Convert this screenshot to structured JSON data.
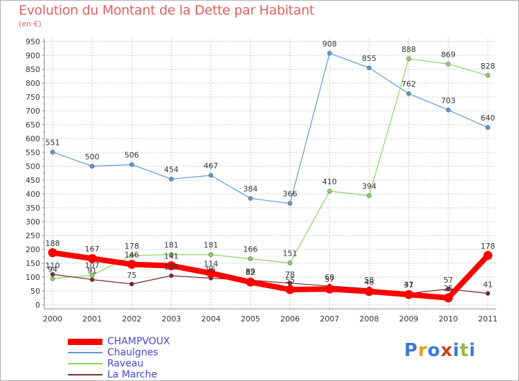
{
  "chart_data": {
    "type": "line",
    "title": "Evolution du Montant de la Dette par Habitant",
    "subtitle": "(en €)",
    "x": [
      "2000",
      "2001",
      "2002",
      "2003",
      "2004",
      "2005",
      "2006",
      "2007",
      "2008",
      "2009",
      "2010",
      "2011"
    ],
    "ylim": [
      0,
      950
    ],
    "yticks": [
      0,
      50,
      100,
      150,
      200,
      250,
      300,
      350,
      400,
      450,
      500,
      550,
      600,
      650,
      700,
      750,
      800,
      850,
      900,
      950
    ],
    "grid": true,
    "legend_position": "bottom-left",
    "series": [
      {
        "name": "Chaulgnes",
        "color": "#5b9bd5",
        "values": [
          551,
          500,
          506,
          454,
          467,
          384,
          366,
          908,
          855,
          762,
          703,
          640
        ]
      },
      {
        "name": "Raveau",
        "color": "#8ed460",
        "values": [
          94,
          107,
          178,
          181,
          181,
          166,
          151,
          410,
          394,
          888,
          869,
          828
        ]
      },
      {
        "name": "La Marche",
        "color": "#7a2a2a",
        "values": [
          110,
          91,
          75,
          105,
          96,
          89,
          78,
          68,
          58,
          41,
          57,
          41
        ]
      },
      {
        "name": "CHAMPVOUX",
        "color": "#ff0000",
        "values": [
          188,
          167,
          146,
          141,
          114,
          82,
          55,
          57,
          48,
          37,
          25,
          178
        ]
      }
    ],
    "data_labels": [
      [
        551,
        500,
        506,
        454,
        467,
        384,
        366,
        908,
        855,
        762,
        703,
        640
      ],
      [
        94,
        107,
        178,
        181,
        181,
        166,
        151,
        410,
        394,
        888,
        869,
        828
      ],
      [
        110,
        91,
        75,
        105,
        96,
        89,
        78,
        68,
        58,
        41,
        57,
        41
      ],
      [
        188,
        167,
        146,
        141,
        114,
        82,
        55,
        57,
        48,
        37,
        25,
        178
      ]
    ],
    "legend": [
      "CHAMPVOUX",
      "Chaulgnes",
      "Raveau",
      "La Marche"
    ]
  },
  "logo": {
    "text": "Proxiti",
    "letter_colors": [
      "#3a7bd5",
      "#e8a020",
      "#3a7bd5",
      "#d04020",
      "#3a7bd5",
      "#8ac040",
      "#3a7bd5"
    ]
  }
}
